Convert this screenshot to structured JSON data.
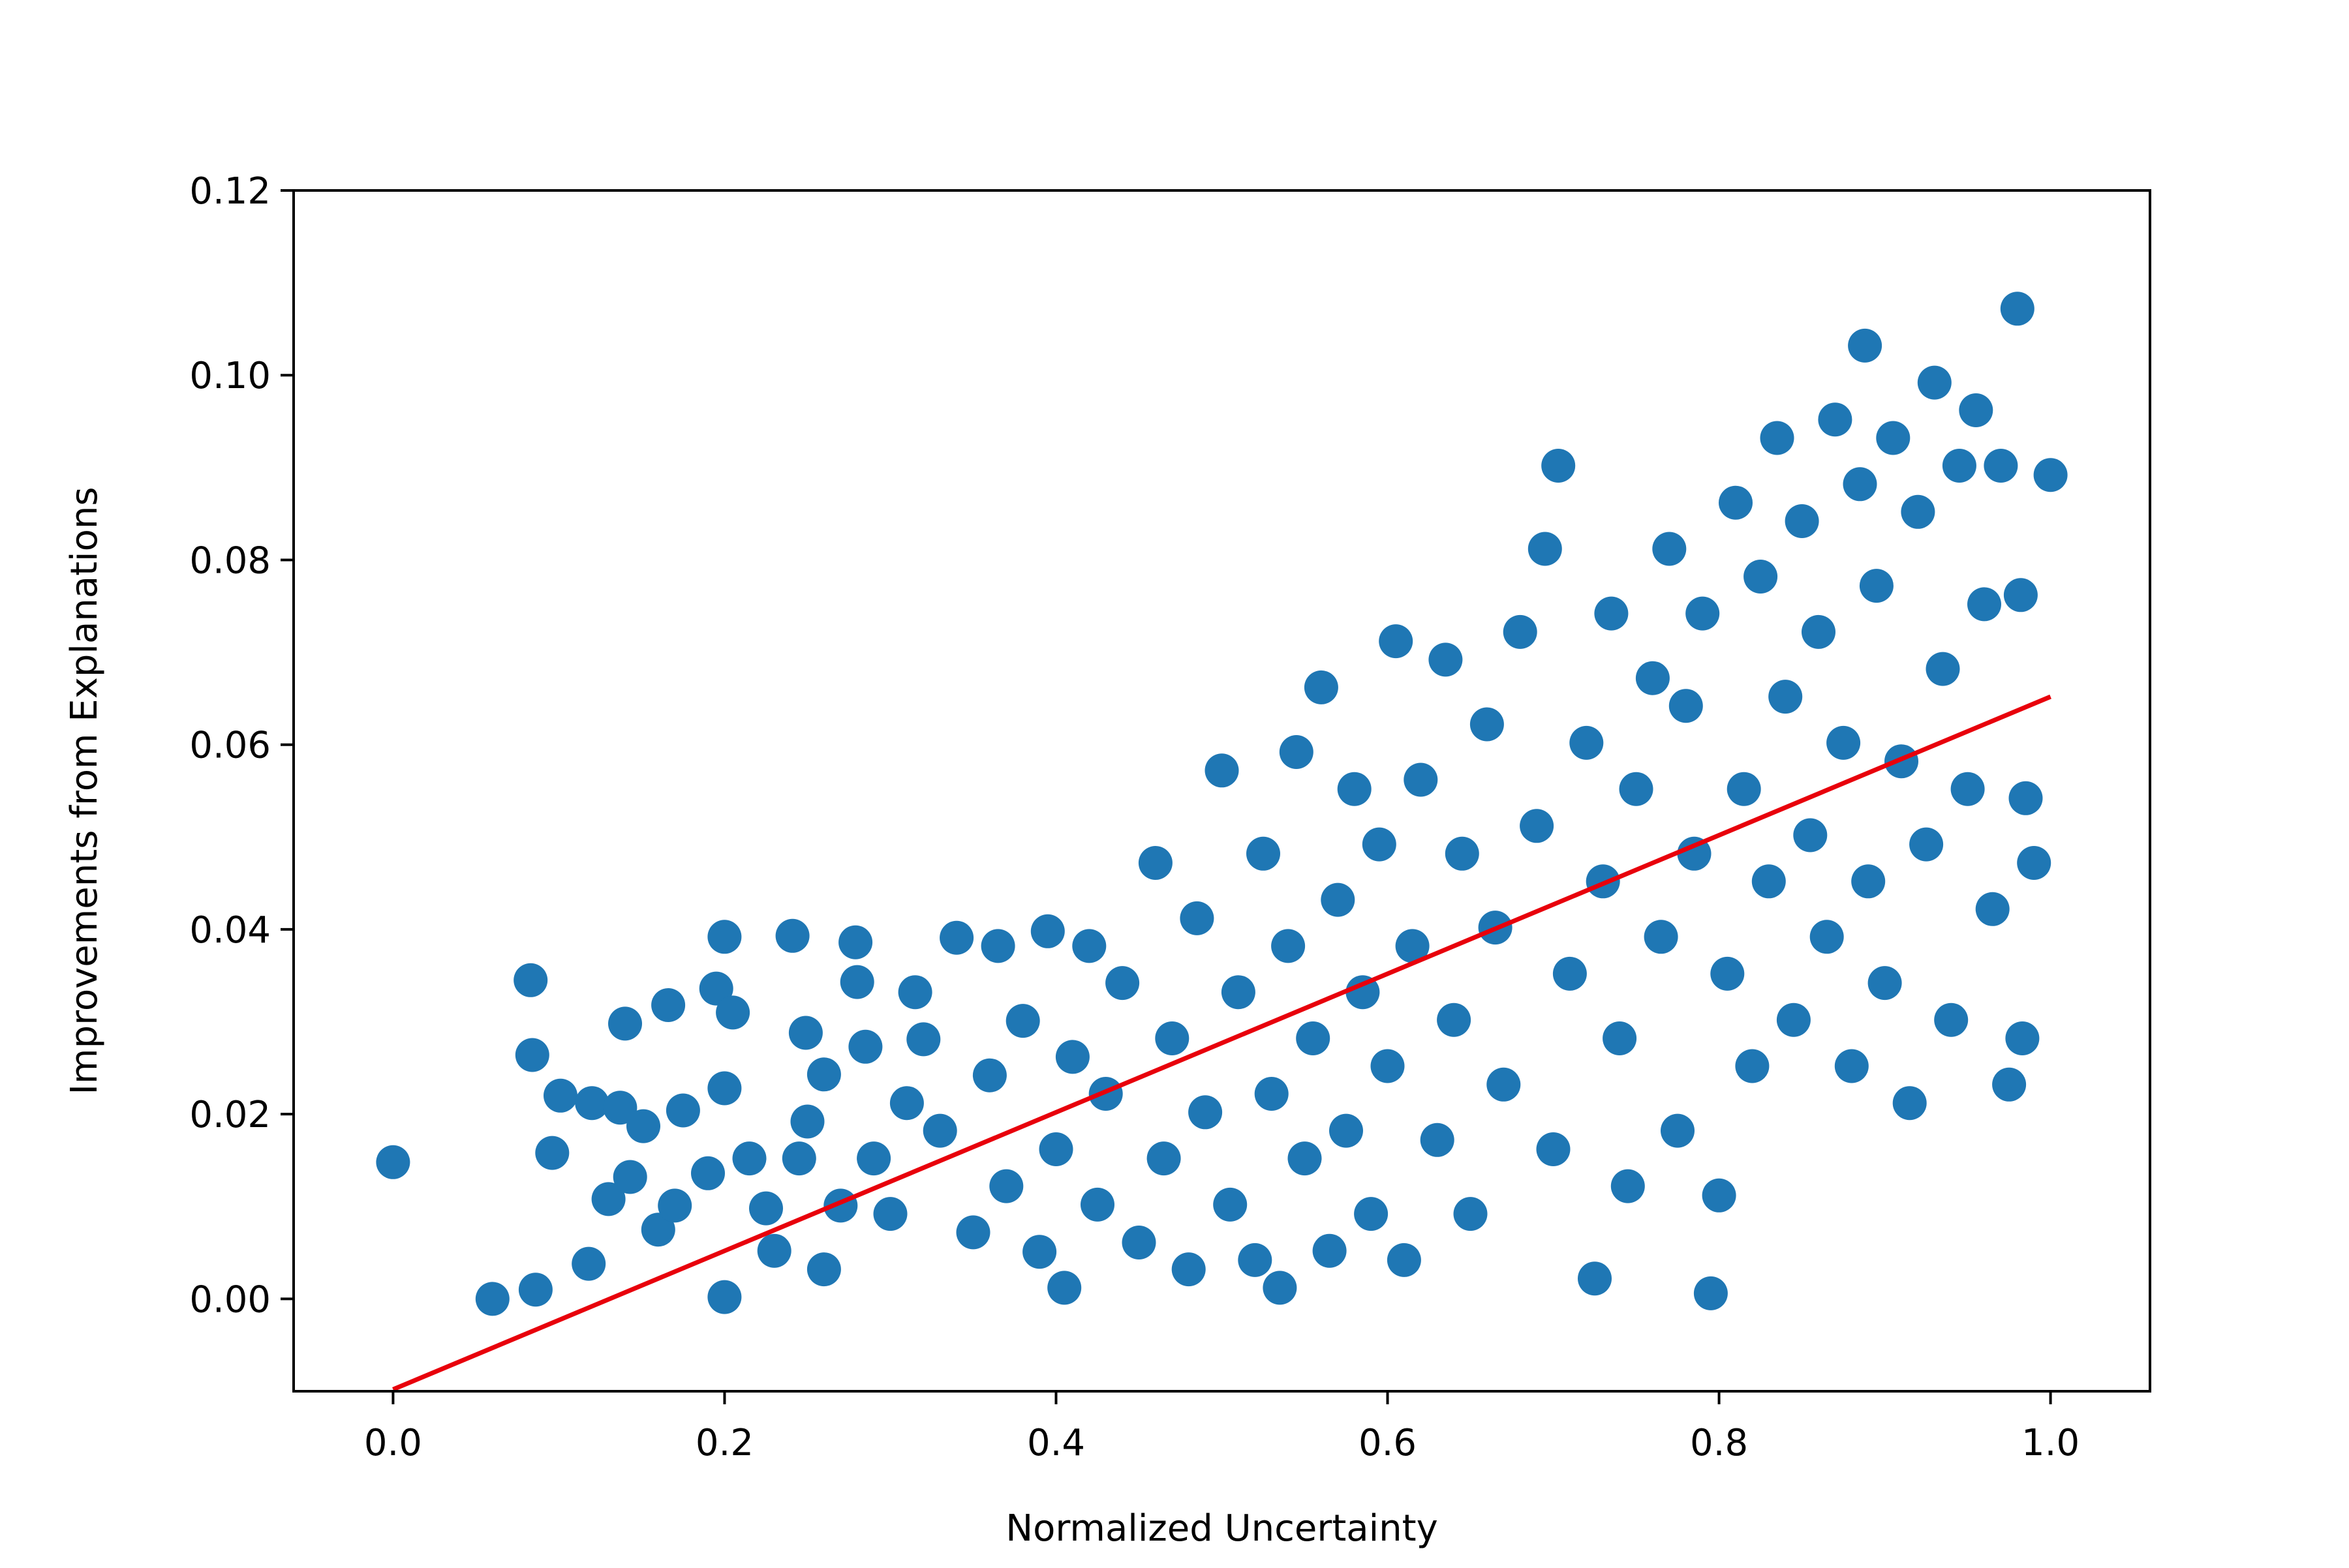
{
  "chart_data": {
    "type": "scatter",
    "title": "",
    "xlabel": "Normalized Uncertainty",
    "ylabel": "Improvements from Explanations",
    "xlim": [
      -0.06,
      1.06
    ],
    "ylim": [
      -0.01,
      0.12
    ],
    "x_ticks": [
      0.0,
      0.2,
      0.4,
      0.6,
      0.8,
      1.0
    ],
    "x_tick_labels": [
      "0.0",
      "0.2",
      "0.4",
      "0.6",
      "0.8",
      "1.0"
    ],
    "y_ticks": [
      0.0,
      0.02,
      0.04,
      0.06,
      0.08,
      0.1,
      0.12
    ],
    "y_tick_labels": [
      "0.00",
      "0.02",
      "0.04",
      "0.06",
      "0.08",
      "0.10",
      "0.12"
    ],
    "grid": false,
    "legend": "none",
    "colors": {
      "points": "#1f77b4",
      "fit_line": "#e8000b",
      "axes": "#000000"
    },
    "series": [
      {
        "points": [
          [
            0.0,
            0.0148
          ],
          [
            0.083,
            0.0345
          ],
          [
            0.084,
            0.0264
          ],
          [
            0.086,
            0.001
          ],
          [
            0.096,
            0.0158
          ],
          [
            0.101,
            0.022
          ],
          [
            0.118,
            0.0038
          ],
          [
            0.12,
            0.0212
          ],
          [
            0.13,
            0.0108
          ],
          [
            0.137,
            0.0207
          ],
          [
            0.14,
            0.0298
          ],
          [
            0.143,
            0.0132
          ],
          [
            0.151,
            0.0187
          ],
          [
            0.166,
            0.0318
          ],
          [
            0.175,
            0.0204
          ],
          [
            0.195,
            0.0336
          ],
          [
            0.2,
            0.0392
          ],
          [
            0.2,
            0.0228
          ],
          [
            0.2,
            0.0002
          ],
          [
            0.205,
            0.031
          ],
          [
            0.241,
            0.0393
          ],
          [
            0.249,
            0.0288
          ],
          [
            0.26,
            0.0243
          ],
          [
            0.279,
            0.0386
          ],
          [
            0.28,
            0.0343
          ],
          [
            0.06,
            0.0
          ],
          [
            0.16,
            0.0075
          ],
          [
            0.17,
            0.0101
          ],
          [
            0.19,
            0.0136
          ],
          [
            0.215,
            0.0152
          ],
          [
            0.225,
            0.0098
          ],
          [
            0.23,
            0.0052
          ],
          [
            0.245,
            0.0152
          ],
          [
            0.25,
            0.0192
          ],
          [
            0.26,
            0.0032
          ],
          [
            0.27,
            0.0101
          ],
          [
            0.285,
            0.0273
          ],
          [
            0.29,
            0.0152
          ],
          [
            0.3,
            0.0092
          ],
          [
            0.31,
            0.0212
          ],
          [
            0.315,
            0.0332
          ],
          [
            0.32,
            0.0281
          ],
          [
            0.33,
            0.0182
          ],
          [
            0.34,
            0.0391
          ],
          [
            0.35,
            0.0072
          ],
          [
            0.36,
            0.0242
          ],
          [
            0.365,
            0.0382
          ],
          [
            0.37,
            0.0122
          ],
          [
            0.38,
            0.0301
          ],
          [
            0.39,
            0.0051
          ],
          [
            0.395,
            0.0398
          ],
          [
            0.4,
            0.0162
          ],
          [
            0.405,
            0.0012
          ],
          [
            0.41,
            0.0262
          ],
          [
            0.42,
            0.0382
          ],
          [
            0.425,
            0.0102
          ],
          [
            0.43,
            0.0222
          ],
          [
            0.44,
            0.0342
          ],
          [
            0.45,
            0.0061
          ],
          [
            0.46,
            0.0472
          ],
          [
            0.465,
            0.0152
          ],
          [
            0.47,
            0.0282
          ],
          [
            0.48,
            0.0032
          ],
          [
            0.485,
            0.0412
          ],
          [
            0.49,
            0.0202
          ],
          [
            0.5,
            0.0572
          ],
          [
            0.505,
            0.0102
          ],
          [
            0.51,
            0.0332
          ],
          [
            0.52,
            0.0042
          ],
          [
            0.525,
            0.0482
          ],
          [
            0.53,
            0.0222
          ],
          [
            0.535,
            0.0012
          ],
          [
            0.54,
            0.0382
          ],
          [
            0.545,
            0.0592
          ],
          [
            0.55,
            0.0152
          ],
          [
            0.555,
            0.0282
          ],
          [
            0.56,
            0.0662
          ],
          [
            0.565,
            0.0052
          ],
          [
            0.57,
            0.0432
          ],
          [
            0.575,
            0.0182
          ],
          [
            0.58,
            0.0552
          ],
          [
            0.585,
            0.0332
          ],
          [
            0.59,
            0.0092
          ],
          [
            0.595,
            0.0492
          ],
          [
            0.6,
            0.0252
          ],
          [
            0.605,
            0.0712
          ],
          [
            0.61,
            0.0042
          ],
          [
            0.615,
            0.0382
          ],
          [
            0.62,
            0.0562
          ],
          [
            0.63,
            0.0172
          ],
          [
            0.635,
            0.0692
          ],
          [
            0.64,
            0.0302
          ],
          [
            0.645,
            0.0482
          ],
          [
            0.65,
            0.0092
          ],
          [
            0.66,
            0.0622
          ],
          [
            0.665,
            0.0402
          ],
          [
            0.67,
            0.0232
          ],
          [
            0.68,
            0.0722
          ],
          [
            0.69,
            0.0512
          ],
          [
            0.695,
            0.0812
          ],
          [
            0.7,
            0.0162
          ],
          [
            0.703,
            0.0902
          ],
          [
            0.71,
            0.0352
          ],
          [
            0.72,
            0.0602
          ],
          [
            0.725,
            0.0022
          ],
          [
            0.73,
            0.0452
          ],
          [
            0.735,
            0.0742
          ],
          [
            0.74,
            0.0282
          ],
          [
            0.745,
            0.0122
          ],
          [
            0.75,
            0.0552
          ],
          [
            0.76,
            0.0672
          ],
          [
            0.765,
            0.0392
          ],
          [
            0.77,
            0.0812
          ],
          [
            0.775,
            0.0182
          ],
          [
            0.78,
            0.0642
          ],
          [
            0.785,
            0.0482
          ],
          [
            0.79,
            0.0742
          ],
          [
            0.795,
            0.0006
          ],
          [
            0.8,
            0.0112
          ],
          [
            0.805,
            0.0352
          ],
          [
            0.81,
            0.0862
          ],
          [
            0.815,
            0.0552
          ],
          [
            0.82,
            0.0252
          ],
          [
            0.825,
            0.0782
          ],
          [
            0.83,
            0.0452
          ],
          [
            0.835,
            0.0932
          ],
          [
            0.84,
            0.0652
          ],
          [
            0.845,
            0.0302
          ],
          [
            0.85,
            0.0842
          ],
          [
            0.855,
            0.0502
          ],
          [
            0.86,
            0.0722
          ],
          [
            0.865,
            0.0392
          ],
          [
            0.87,
            0.0952
          ],
          [
            0.875,
            0.0602
          ],
          [
            0.88,
            0.0252
          ],
          [
            0.885,
            0.0882
          ],
          [
            0.888,
            0.1032
          ],
          [
            0.89,
            0.0452
          ],
          [
            0.895,
            0.0772
          ],
          [
            0.9,
            0.0342
          ],
          [
            0.905,
            0.0932
          ],
          [
            0.91,
            0.0582
          ],
          [
            0.915,
            0.0212
          ],
          [
            0.92,
            0.0852
          ],
          [
            0.925,
            0.0492
          ],
          [
            0.93,
            0.0992
          ],
          [
            0.935,
            0.0682
          ],
          [
            0.94,
            0.0302
          ],
          [
            0.945,
            0.0902
          ],
          [
            0.95,
            0.0552
          ],
          [
            0.955,
            0.0962
          ],
          [
            0.96,
            0.0752
          ],
          [
            0.965,
            0.0422
          ],
          [
            0.97,
            0.0902
          ],
          [
            0.975,
            0.0232
          ],
          [
            0.98,
            0.1072
          ],
          [
            0.982,
            0.0762
          ],
          [
            0.983,
            0.0282
          ],
          [
            0.985,
            0.0542
          ],
          [
            0.99,
            0.0472
          ],
          [
            1.0,
            0.0892
          ]
        ]
      }
    ],
    "fit_line": {
      "x": [
        0.0,
        1.0
      ],
      "y": [
        -0.0098,
        0.0652
      ]
    }
  }
}
